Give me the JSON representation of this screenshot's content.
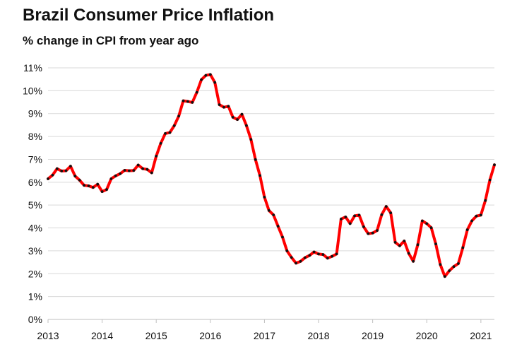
{
  "chart_data": {
    "type": "line",
    "title": "Brazil Consumer Price Inflation",
    "subtitle": "% change in CPI from year ago",
    "xlabel": "",
    "ylabel": "",
    "x_ticks": [
      "2013",
      "2014",
      "2015",
      "2016",
      "2017",
      "2018",
      "2019",
      "2020",
      "2021"
    ],
    "y_ticks": [
      "0%",
      "1%",
      "2%",
      "3%",
      "4%",
      "5%",
      "6%",
      "7%",
      "8%",
      "9%",
      "10%",
      "11%"
    ],
    "xlim": [
      2013.0,
      2021.25
    ],
    "ylim": [
      0,
      11
    ],
    "grid": "horizontal",
    "series": [
      {
        "name": "CPI % change y/y",
        "color": "#ff0000",
        "marker_color": "#111111",
        "start": "2013-01",
        "frequency": "monthly",
        "values": [
          6.15,
          6.31,
          6.59,
          6.49,
          6.5,
          6.7,
          6.27,
          6.09,
          5.86,
          5.84,
          5.77,
          5.91,
          5.59,
          5.68,
          6.15,
          6.28,
          6.37,
          6.52,
          6.5,
          6.51,
          6.75,
          6.59,
          6.56,
          6.41,
          7.14,
          7.7,
          8.13,
          8.17,
          8.47,
          8.89,
          9.56,
          9.53,
          9.49,
          9.93,
          10.48,
          10.67,
          10.71,
          10.36,
          9.39,
          9.28,
          9.32,
          8.84,
          8.74,
          8.97,
          8.48,
          7.87,
          6.99,
          6.29,
          5.35,
          4.76,
          4.57,
          4.08,
          3.6,
          3.0,
          2.71,
          2.46,
          2.54,
          2.7,
          2.8,
          2.95,
          2.86,
          2.84,
          2.68,
          2.76,
          2.86,
          4.39,
          4.48,
          4.19,
          4.53,
          4.56,
          4.05,
          3.75,
          3.78,
          3.89,
          4.58,
          4.94,
          4.66,
          3.37,
          3.22,
          3.43,
          2.89,
          2.54,
          3.27,
          4.31,
          4.19,
          4.01,
          3.3,
          2.4,
          1.88,
          2.13,
          2.31,
          2.44,
          3.14,
          3.92,
          4.31,
          4.52,
          4.56,
          5.2,
          6.1,
          6.76
        ]
      }
    ]
  }
}
